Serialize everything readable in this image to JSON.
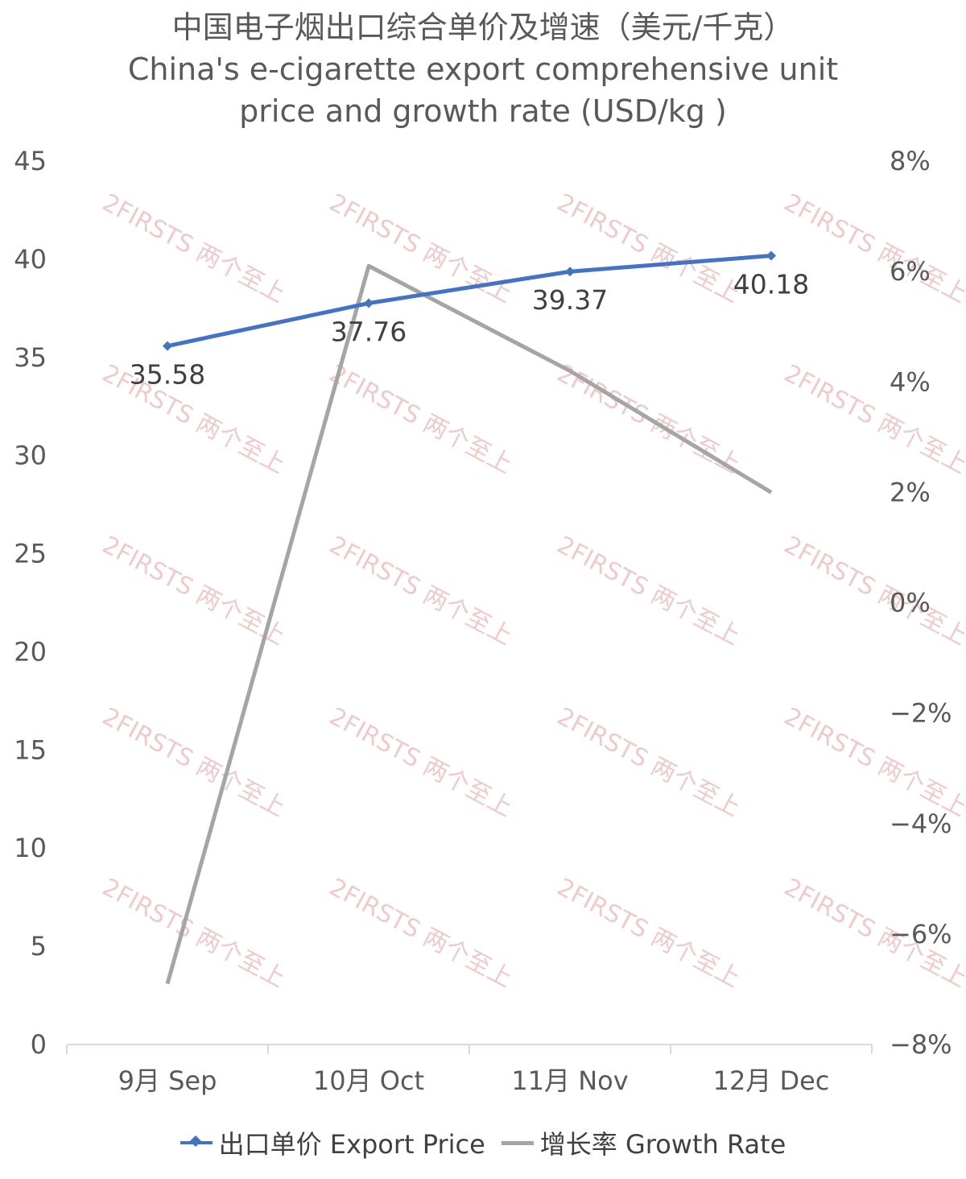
{
  "title_zh": "中国电子烟出口综合单价及增速（美元/千克）",
  "title_en_line1": "China's e-cigarette export comprehensive unit",
  "title_en_line2": "price and growth rate (USD/kg )",
  "watermark": "2FIRSTS 两个至上",
  "colors": {
    "price": "#4472C4",
    "growth": "#A5A5A5",
    "watermark": "#e8b4b4"
  },
  "chart_data": {
    "type": "line",
    "categories": [
      "9月 Sep",
      "10月 Oct",
      "11月 Nov",
      "12月 Dec"
    ],
    "series": [
      {
        "name": "出口单价 Export Price",
        "axis": "left",
        "marker": "diamond",
        "values": [
          35.58,
          37.76,
          39.37,
          40.18
        ],
        "labels": [
          "35.58",
          "37.76",
          "39.37",
          "40.18"
        ]
      },
      {
        "name": "增长率 Growth Rate",
        "axis": "right",
        "marker": "none",
        "values": [
          -6.9,
          6.1,
          4.2,
          2.0
        ]
      }
    ],
    "left_axis": {
      "min": 0,
      "max": 45,
      "step": 5,
      "ticks": [
        "0",
        "5",
        "10",
        "15",
        "20",
        "25",
        "30",
        "35",
        "40",
        "45"
      ]
    },
    "right_axis": {
      "min": -8,
      "max": 8,
      "step": 2,
      "ticks": [
        "−8%",
        "−6%",
        "−4%",
        "−2%",
        "0%",
        "2%",
        "4%",
        "6%",
        "8%"
      ]
    },
    "grid": false,
    "legend_position": "bottom"
  }
}
